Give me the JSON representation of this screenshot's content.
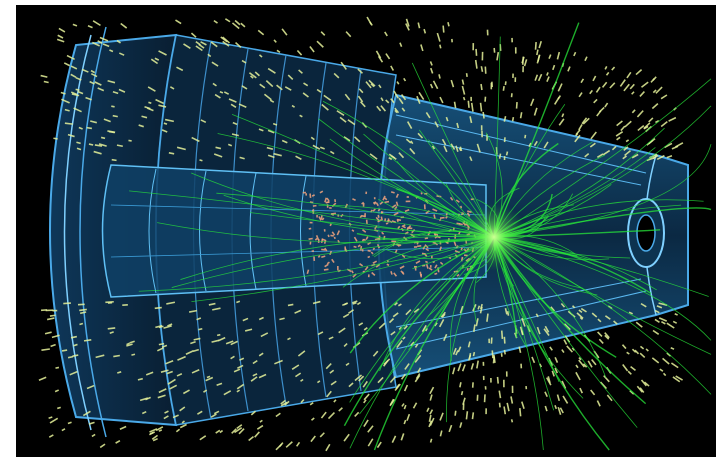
{
  "image": {
    "kind": "detector-event-display",
    "background_color": "#000000",
    "frame_color": "#ffffff",
    "colors": {
      "detector_fill": "#0d2f4d",
      "detector_edge": "#4aa9e8",
      "detector_edge_bright": "#7fd0ff",
      "inner_barrel": "#145078",
      "tracks": "#27e63a",
      "calorimeter_hits": "#e6f29a",
      "inner_hits": "#f2a37c",
      "vertex_glow": "#b8ff6a"
    },
    "features": [
      "endcap-disks",
      "barrel-modules",
      "central-tracker",
      "particle-tracks",
      "energy-deposits",
      "interaction-vertex"
    ]
  }
}
